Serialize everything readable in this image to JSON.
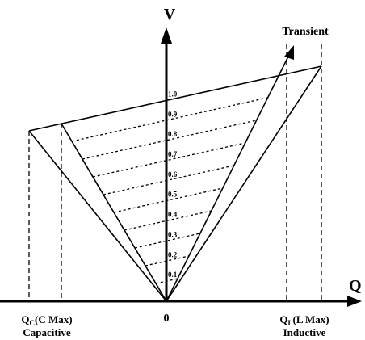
{
  "axes": {
    "vertical": "V",
    "horizontal": "Q",
    "origin": "0"
  },
  "transient": "Transient",
  "levels": [
    "0.1",
    "0.2",
    "0.3",
    "0.4",
    "0.5",
    "0.6",
    "0.7",
    "0.8",
    "0.9",
    "1.0"
  ],
  "capacitive": {
    "symbol": "Q",
    "subscript": "C",
    "limit": "(C Max)",
    "label": "Capacitive"
  },
  "inductive": {
    "symbol": "Q",
    "subscript": "L",
    "limit": "(L Max)",
    "label": "Inductive"
  }
}
